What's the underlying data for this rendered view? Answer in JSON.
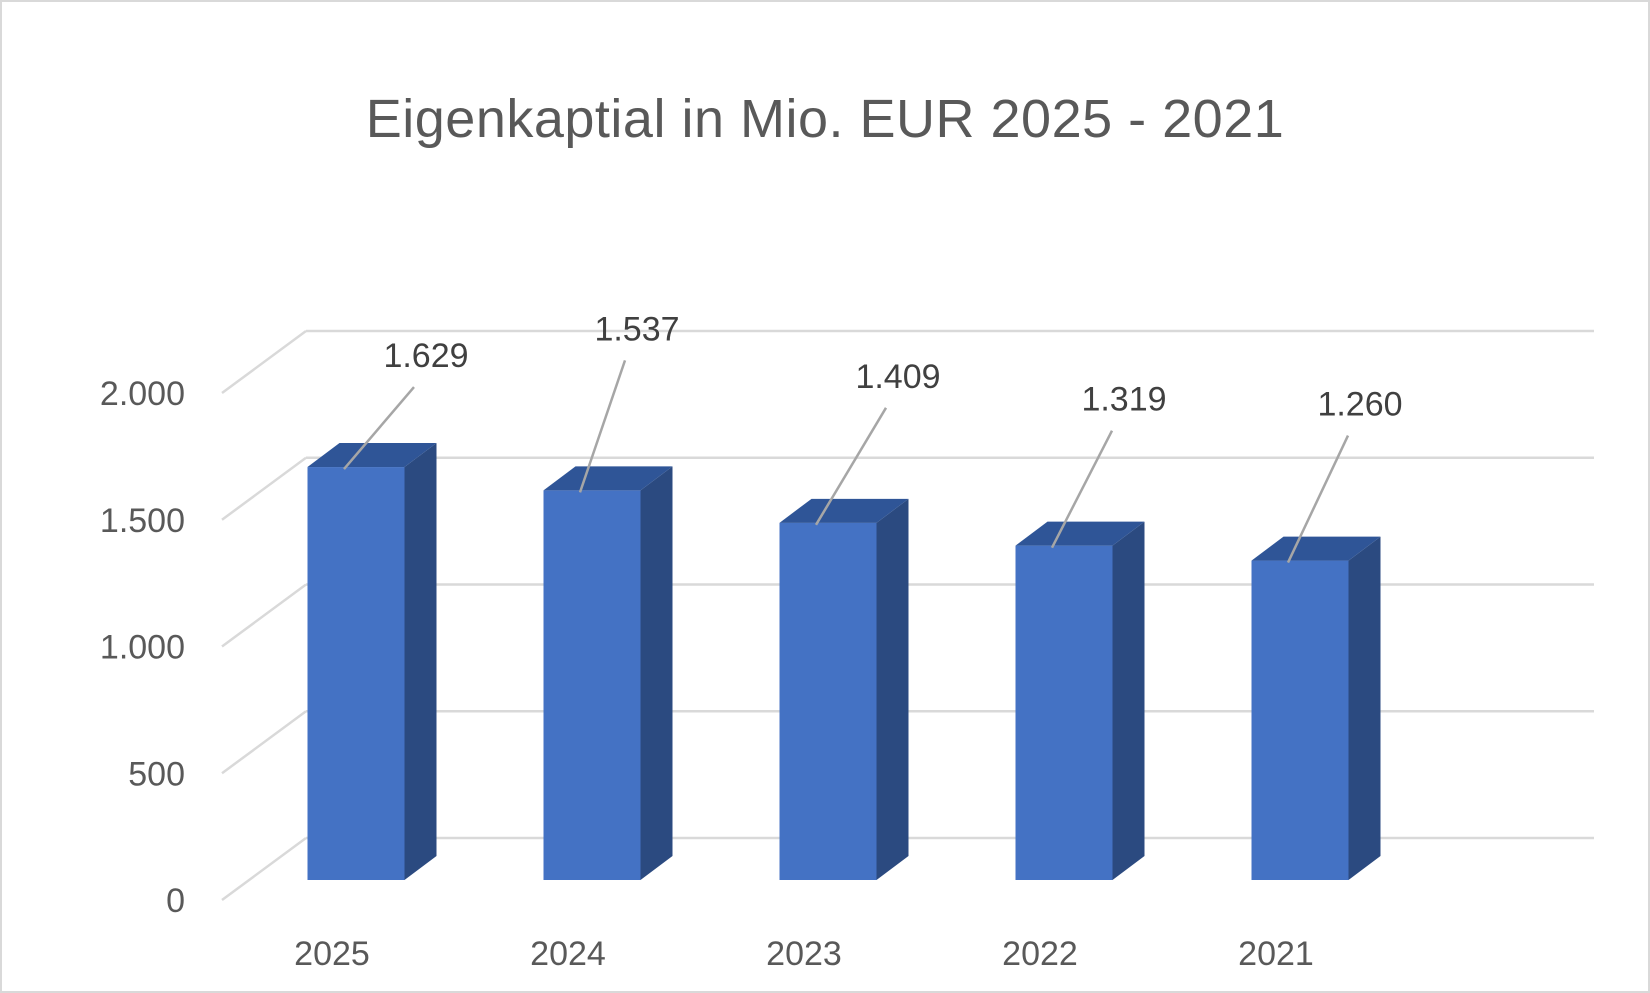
{
  "chart_data": {
    "type": "bar",
    "title": "Eigenkaptial in Mio. EUR 2025 - 2021",
    "categories": [
      "2025",
      "2024",
      "2023",
      "2022",
      "2021"
    ],
    "values": [
      1629,
      1537,
      1409,
      1319,
      1260
    ],
    "data_labels": [
      "1.629",
      "1.537",
      "1.409",
      "1.319",
      "1.260"
    ],
    "yticks": [
      0,
      500,
      1000,
      1500,
      2000
    ],
    "ytick_labels": [
      "0",
      "500",
      "1.000",
      "1.500",
      "2.000"
    ],
    "ylim": [
      0,
      2000
    ],
    "xlabel": "",
    "ylabel": "",
    "grid": true,
    "legend": "none",
    "style": "3d-column",
    "colors": {
      "bar_front": "#4472c4",
      "bar_side": "#2b4a80",
      "bar_top": "#2f5597",
      "gridline": "#d9d9d9",
      "leader_line": "#a6a6a6",
      "text": "#595959"
    }
  }
}
